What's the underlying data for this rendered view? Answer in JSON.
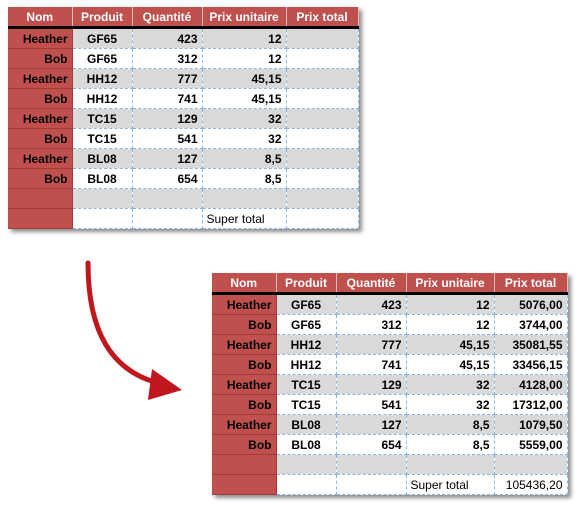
{
  "headers": [
    "Nom",
    "Produit",
    "Quantité",
    "Prix unitaire",
    "Prix total"
  ],
  "before": {
    "rows": [
      {
        "nom": "Heather",
        "produit": "GF65",
        "quantite": "423",
        "prix": "12",
        "total": ""
      },
      {
        "nom": "Bob",
        "produit": "GF65",
        "quantite": "312",
        "prix": "12",
        "total": ""
      },
      {
        "nom": "Heather",
        "produit": "HH12",
        "quantite": "777",
        "prix": "45,15",
        "total": ""
      },
      {
        "nom": "Bob",
        "produit": "HH12",
        "quantite": "741",
        "prix": "45,15",
        "total": ""
      },
      {
        "nom": "Heather",
        "produit": "TC15",
        "quantite": "129",
        "prix": "32",
        "total": ""
      },
      {
        "nom": "Bob",
        "produit": "TC15",
        "quantite": "541",
        "prix": "32",
        "total": ""
      },
      {
        "nom": "Heather",
        "produit": "BL08",
        "quantite": "127",
        "prix": "8,5",
        "total": ""
      },
      {
        "nom": "Bob",
        "produit": "BL08",
        "quantite": "654",
        "prix": "8,5",
        "total": ""
      }
    ],
    "super_total_label": "Super total",
    "super_total_value": ""
  },
  "after": {
    "rows": [
      {
        "nom": "Heather",
        "produit": "GF65",
        "quantite": "423",
        "prix": "12",
        "total": "5076,00"
      },
      {
        "nom": "Bob",
        "produit": "GF65",
        "quantite": "312",
        "prix": "12",
        "total": "3744,00"
      },
      {
        "nom": "Heather",
        "produit": "HH12",
        "quantite": "777",
        "prix": "45,15",
        "total": "35081,55"
      },
      {
        "nom": "Bob",
        "produit": "HH12",
        "quantite": "741",
        "prix": "45,15",
        "total": "33456,15"
      },
      {
        "nom": "Heather",
        "produit": "TC15",
        "quantite": "129",
        "prix": "32",
        "total": "4128,00"
      },
      {
        "nom": "Bob",
        "produit": "TC15",
        "quantite": "541",
        "prix": "32",
        "total": "17312,00"
      },
      {
        "nom": "Heather",
        "produit": "BL08",
        "quantite": "127",
        "prix": "8,5",
        "total": "1079,50"
      },
      {
        "nom": "Bob",
        "produit": "BL08",
        "quantite": "654",
        "prix": "8,5",
        "total": "5559,00"
      }
    ],
    "super_total_label": "Super total",
    "super_total_value": "105436,20"
  },
  "colors": {
    "header_bg": "#c0504d",
    "nom_bg": "#c0504d",
    "band_gray": "#d9d9d9",
    "arrow": "#c0161d"
  },
  "icons": {
    "transition": "curved-arrow-icon"
  }
}
